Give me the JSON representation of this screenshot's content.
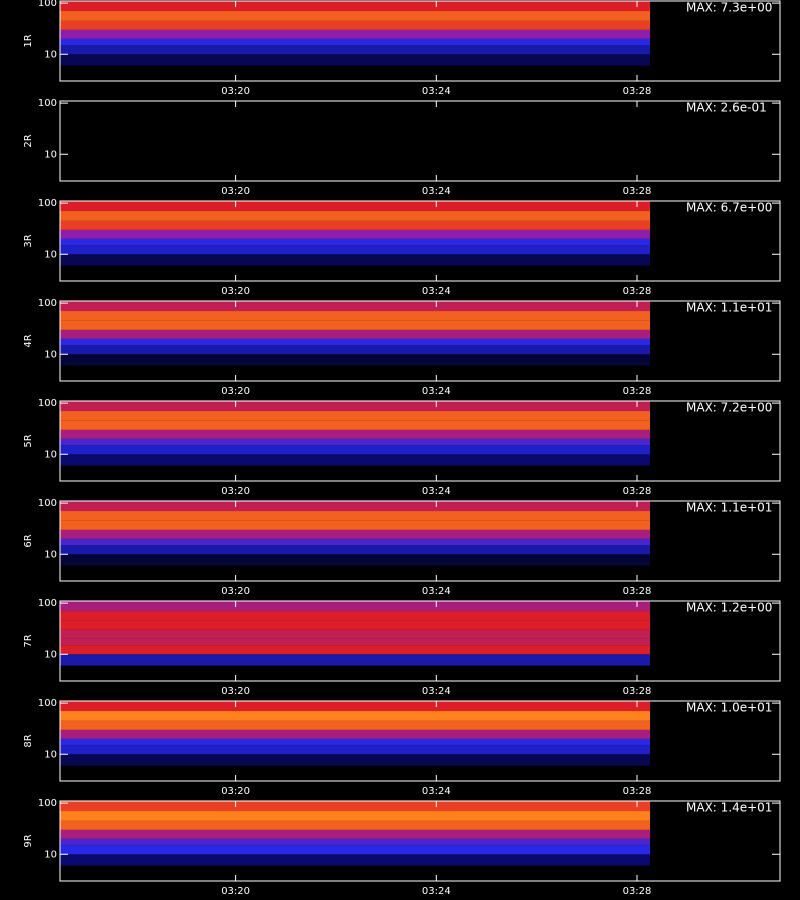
{
  "chart_data": [
    {
      "type": "heatmap",
      "ylabel": "1R",
      "annotation": "MAX: 7.3e+00",
      "log_y": true,
      "ylim": [
        3,
        110
      ],
      "yticks": [
        10,
        100
      ],
      "xlim": [
        16.5,
        30.85
      ],
      "xticks": [
        {
          "value": 20,
          "label": "03:20"
        },
        {
          "value": 24,
          "label": "03:24"
        },
        {
          "value": 28,
          "label": "03:28"
        }
      ],
      "x_range": [
        16.5,
        28.26
      ],
      "y_edges": [
        6,
        10,
        15,
        20,
        30,
        45,
        70,
        110
      ],
      "values": [
        0.15,
        0.3,
        0.4,
        0.55,
        0.75,
        0.8,
        0.7
      ]
    },
    {
      "type": "heatmap",
      "ylabel": "2R",
      "annotation": "MAX: 2.6e-01",
      "log_y": true,
      "ylim": [
        3,
        110
      ],
      "yticks": [
        10,
        100
      ],
      "xlim": [
        16.5,
        30.85
      ],
      "xticks": [
        {
          "value": 20,
          "label": "03:20"
        },
        {
          "value": 24,
          "label": "03:24"
        },
        {
          "value": 28,
          "label": "03:28"
        }
      ],
      "x_range": [
        16.5,
        28.26
      ],
      "y_edges": [
        6,
        10,
        15,
        20,
        30,
        45,
        70,
        110
      ],
      "values": [
        0,
        0,
        0,
        0,
        0,
        0,
        0
      ]
    },
    {
      "type": "heatmap",
      "ylabel": "3R",
      "annotation": "MAX: 6.7e+00",
      "log_y": true,
      "ylim": [
        3,
        110
      ],
      "yticks": [
        10,
        100
      ],
      "xlim": [
        16.5,
        30.85
      ],
      "xticks": [
        {
          "value": 20,
          "label": "03:20"
        },
        {
          "value": 24,
          "label": "03:24"
        },
        {
          "value": 28,
          "label": "03:28"
        }
      ],
      "x_range": [
        16.5,
        28.26
      ],
      "y_edges": [
        6,
        10,
        15,
        20,
        30,
        45,
        70,
        110
      ],
      "values": [
        0.15,
        0.35,
        0.4,
        0.55,
        0.75,
        0.8,
        0.7
      ]
    },
    {
      "type": "heatmap",
      "ylabel": "4R",
      "annotation": "MAX: 1.1e+01",
      "log_y": true,
      "ylim": [
        3,
        110
      ],
      "yticks": [
        10,
        100
      ],
      "xlim": [
        16.5,
        30.85
      ],
      "xticks": [
        {
          "value": 20,
          "label": "03:20"
        },
        {
          "value": 24,
          "label": "03:24"
        },
        {
          "value": 28,
          "label": "03:28"
        }
      ],
      "x_range": [
        16.5,
        28.26
      ],
      "y_edges": [
        6,
        10,
        15,
        20,
        30,
        45,
        70,
        110
      ],
      "values": [
        0.1,
        0.3,
        0.4,
        0.6,
        0.8,
        0.8,
        0.65
      ]
    },
    {
      "type": "heatmap",
      "ylabel": "5R",
      "annotation": "MAX: 7.2e+00",
      "log_y": true,
      "ylim": [
        3,
        110
      ],
      "yticks": [
        10,
        100
      ],
      "xlim": [
        16.5,
        30.85
      ],
      "xticks": [
        {
          "value": 20,
          "label": "03:20"
        },
        {
          "value": 24,
          "label": "03:24"
        },
        {
          "value": 28,
          "label": "03:28"
        }
      ],
      "x_range": [
        16.5,
        28.26
      ],
      "y_edges": [
        6,
        10,
        15,
        20,
        30,
        45,
        70,
        110
      ],
      "values": [
        0.2,
        0.35,
        0.45,
        0.6,
        0.8,
        0.8,
        0.65
      ]
    },
    {
      "type": "heatmap",
      "ylabel": "6R",
      "annotation": "MAX: 1.1e+01",
      "log_y": true,
      "ylim": [
        3,
        110
      ],
      "yticks": [
        10,
        100
      ],
      "xlim": [
        16.5,
        30.85
      ],
      "xticks": [
        {
          "value": 20,
          "label": "03:20"
        },
        {
          "value": 24,
          "label": "03:24"
        },
        {
          "value": 28,
          "label": "03:28"
        }
      ],
      "x_range": [
        16.5,
        28.26
      ],
      "y_edges": [
        6,
        10,
        15,
        20,
        30,
        45,
        70,
        110
      ],
      "values": [
        0.1,
        0.3,
        0.45,
        0.6,
        0.8,
        0.8,
        0.65
      ]
    },
    {
      "type": "heatmap",
      "ylabel": "7R",
      "annotation": "MAX: 1.2e+00",
      "log_y": true,
      "ylim": [
        3,
        110
      ],
      "yticks": [
        10,
        100
      ],
      "xlim": [
        16.5,
        30.85
      ],
      "xticks": [
        {
          "value": 20,
          "label": "03:20"
        },
        {
          "value": 24,
          "label": "03:24"
        },
        {
          "value": 28,
          "label": "03:28"
        }
      ],
      "x_range": [
        16.5,
        28.26
      ],
      "y_edges": [
        6,
        10,
        15,
        20,
        30,
        45,
        70,
        110
      ],
      "values": [
        0.3,
        0.7,
        0.65,
        0.65,
        0.7,
        0.7,
        0.6
      ]
    },
    {
      "type": "heatmap",
      "ylabel": "8R",
      "annotation": "MAX: 1.0e+01",
      "log_y": true,
      "ylim": [
        3,
        110
      ],
      "yticks": [
        10,
        100
      ],
      "xlim": [
        16.5,
        30.85
      ],
      "xticks": [
        {
          "value": 20,
          "label": "03:20"
        },
        {
          "value": 24,
          "label": "03:24"
        },
        {
          "value": 28,
          "label": "03:28"
        }
      ],
      "x_range": [
        16.5,
        28.26
      ],
      "y_edges": [
        6,
        10,
        15,
        20,
        30,
        45,
        70,
        110
      ],
      "values": [
        0.15,
        0.35,
        0.4,
        0.6,
        0.8,
        0.85,
        0.7
      ]
    },
    {
      "type": "heatmap",
      "ylabel": "9R",
      "annotation": "MAX: 1.4e+01",
      "log_y": true,
      "ylim": [
        3,
        110
      ],
      "yticks": [
        10,
        100
      ],
      "xlim": [
        16.5,
        30.85
      ],
      "xticks": [
        {
          "value": 20,
          "label": "03:20"
        },
        {
          "value": 24,
          "label": "03:24"
        },
        {
          "value": 28,
          "label": "03:28"
        }
      ],
      "x_range": [
        16.5,
        28.26
      ],
      "y_edges": [
        6,
        10,
        15,
        20,
        30,
        45,
        70,
        110
      ],
      "values": [
        0.2,
        0.4,
        0.45,
        0.6,
        0.8,
        0.85,
        0.75
      ]
    }
  ]
}
